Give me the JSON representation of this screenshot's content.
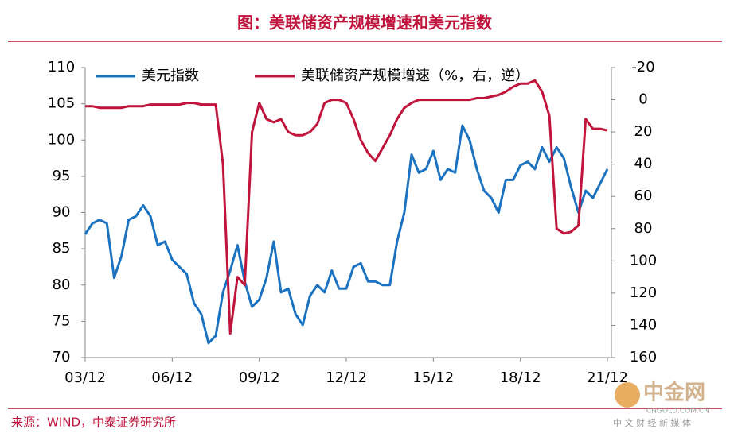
{
  "chart_data": {
    "type": "line",
    "title": "图：美联储资产规模增速和美元指数",
    "source": "来源：WIND，中泰证券研究所",
    "watermark": {
      "name": "中金网",
      "site": "CNGOLD.COM.CN",
      "slogan": "中 文 财 经 新 媒 体"
    },
    "categories": [
      "03/12",
      null,
      null,
      null,
      null,
      null,
      null,
      null,
      null,
      null,
      null,
      null,
      "06/12",
      null,
      null,
      null,
      null,
      null,
      null,
      null,
      null,
      null,
      null,
      null,
      "09/12",
      null,
      null,
      null,
      null,
      null,
      null,
      null,
      null,
      null,
      null,
      null,
      "12/12",
      null,
      null,
      null,
      null,
      null,
      null,
      null,
      null,
      null,
      null,
      null,
      "15/12",
      null,
      null,
      null,
      null,
      null,
      null,
      null,
      null,
      null,
      null,
      null,
      "18/12",
      null,
      null,
      null,
      null,
      null,
      null,
      null,
      null,
      null,
      null,
      null,
      "21/12"
    ],
    "series": [
      {
        "name": "美元指数",
        "color": "#1b72c0",
        "values": [
          87,
          88.5,
          89,
          88.5,
          81,
          84,
          89,
          89.5,
          91,
          89.5,
          85.5,
          86,
          83.5,
          82.5,
          81.5,
          77.5,
          76,
          72,
          73,
          79,
          82,
          85.5,
          80.5,
          77,
          78,
          81,
          86,
          79,
          79.5,
          76,
          74.5,
          78.5,
          80,
          79,
          82,
          79.5,
          79.5,
          82.5,
          83,
          80.5,
          80.5,
          80,
          80,
          86,
          90,
          98,
          95.5,
          96,
          98.5,
          94.5,
          96,
          95.5,
          102,
          100,
          96,
          93,
          92,
          90,
          94.5,
          94.5,
          96.5,
          97,
          96,
          99,
          97,
          99,
          97.5,
          93.5,
          90,
          93,
          92,
          94,
          96
        ]
      },
      {
        "name": "美联储资产规模增速（%，右，逆）",
        "color": "#c0143c",
        "axis": "y2",
        "values": [
          4,
          4,
          5,
          5,
          5,
          5,
          4,
          4,
          4,
          3,
          3,
          3,
          3,
          3,
          2,
          2,
          3,
          3,
          3,
          40,
          145,
          110,
          115,
          20,
          2,
          12,
          14,
          12,
          20,
          22,
          22,
          20,
          15,
          2,
          0,
          0,
          2,
          12,
          25,
          33,
          38,
          30,
          22,
          12,
          5,
          2,
          0,
          0,
          0,
          0,
          0,
          0,
          0,
          0,
          -1,
          -1,
          -2,
          -3,
          -5,
          -8,
          -10,
          -10,
          -12,
          -5,
          10,
          80,
          83,
          82,
          78,
          12,
          18,
          18,
          19
        ]
      }
    ],
    "ylim": [
      70,
      110
    ],
    "yticks": [
      70,
      75,
      80,
      85,
      90,
      95,
      100,
      105,
      110
    ],
    "y2lim": [
      -20,
      160
    ],
    "y2ticks": [
      -20,
      0,
      20,
      40,
      60,
      80,
      100,
      120,
      140,
      160
    ],
    "y2_inverted": true,
    "legend": "top"
  }
}
